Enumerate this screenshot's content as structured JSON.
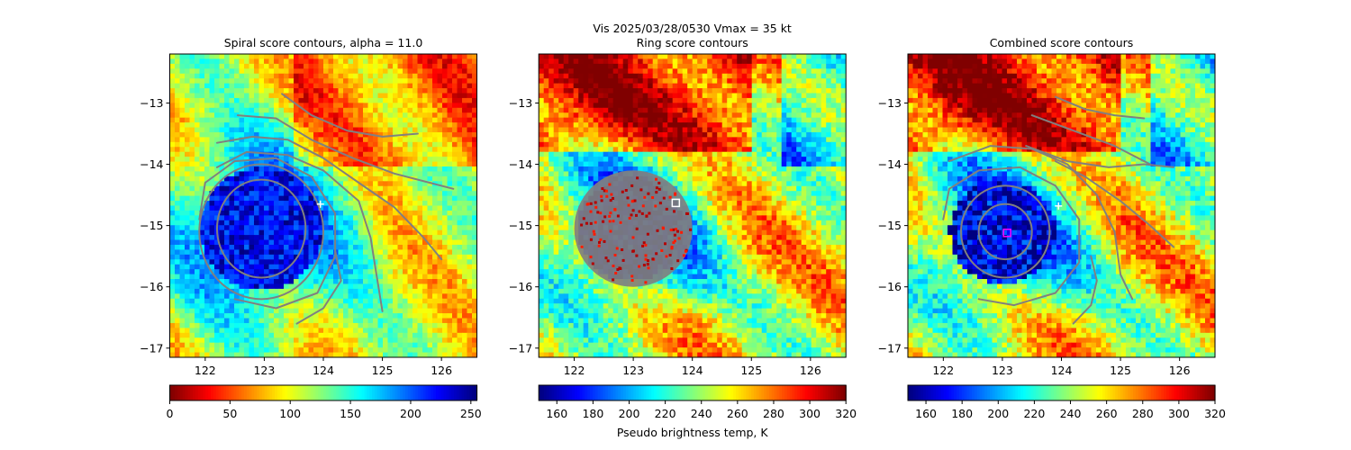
{
  "chart_data": {
    "suptitle": "Vis  2025/03/28/0530    Vmax = 35 kt",
    "xlim": [
      121.4,
      126.6
    ],
    "ylim": [
      -17.15,
      -12.2
    ],
    "xticks": [
      122,
      123,
      124,
      125,
      126
    ],
    "yticks": [
      -13,
      -14,
      -15,
      -16,
      -17
    ],
    "xtick_labels": [
      "122",
      "123",
      "124",
      "125",
      "126"
    ],
    "ytick_labels": [
      "−13",
      "−14",
      "−15",
      "−16",
      "−17"
    ],
    "colormap": "jet",
    "contour_color": "#808080",
    "panels": [
      {
        "type": "heatmap",
        "title": "Spiral score contours, alpha = 11.0",
        "field_range": [
          0,
          255
        ],
        "colorbar_ticks": [
          0,
          50,
          100,
          150,
          200,
          250
        ],
        "colorbar_tick_labels": [
          "0",
          "50",
          "100",
          "150",
          "200",
          "250"
        ],
        "colorbar_reversed": true,
        "colorbar_label": "",
        "core_center": [
          122.95,
          -15.05
        ],
        "marker": {
          "shape": "plus",
          "lon": 123.95,
          "lat": -14.65,
          "color": "#ffffff"
        },
        "contour_levels": [
          {
            "ellipse": {
              "lon": 122.95,
              "lat": -15.05,
              "rx": 0.75,
              "ry": 0.8
            }
          },
          {
            "ellipse": {
              "lon": 122.95,
              "lat": -15.1,
              "rx": 1.05,
              "ry": 1.1
            }
          },
          {
            "polyline": [
              [
                121.9,
                -14.9
              ],
              [
                122.0,
                -14.3
              ],
              [
                122.5,
                -13.95
              ],
              [
                123.2,
                -13.9
              ],
              [
                123.8,
                -14.2
              ],
              [
                124.2,
                -14.8
              ],
              [
                124.2,
                -15.5
              ],
              [
                123.9,
                -16.1
              ],
              [
                123.2,
                -16.35
              ],
              [
                122.5,
                -16.2
              ]
            ]
          },
          {
            "polyline": [
              [
                122.2,
                -14.05
              ],
              [
                122.7,
                -13.8
              ],
              [
                123.4,
                -13.85
              ],
              [
                124.0,
                -14.1
              ],
              [
                124.6,
                -14.6
              ],
              [
                124.8,
                -15.2
              ],
              [
                124.9,
                -15.8
              ],
              [
                125.0,
                -16.4
              ]
            ]
          },
          {
            "polyline": [
              [
                122.2,
                -13.65
              ],
              [
                122.8,
                -13.55
              ],
              [
                123.4,
                -13.6
              ],
              [
                124.0,
                -13.9
              ],
              [
                124.6,
                -14.3
              ],
              [
                125.2,
                -14.7
              ],
              [
                125.7,
                -15.2
              ],
              [
                126.0,
                -15.55
              ]
            ]
          },
          {
            "polyline": [
              [
                122.55,
                -13.2
              ],
              [
                123.2,
                -13.25
              ],
              [
                123.8,
                -13.6
              ],
              [
                124.5,
                -13.9
              ],
              [
                125.2,
                -14.15
              ],
              [
                125.8,
                -14.3
              ],
              [
                126.2,
                -14.4
              ]
            ]
          },
          {
            "polyline": [
              [
                123.3,
                -12.85
              ],
              [
                123.8,
                -13.2
              ],
              [
                124.4,
                -13.45
              ],
              [
                125.0,
                -13.55
              ],
              [
                125.6,
                -13.5
              ]
            ]
          },
          {
            "polyline": [
              [
                123.55,
                -16.6
              ],
              [
                124.0,
                -16.35
              ],
              [
                124.3,
                -15.9
              ],
              [
                124.2,
                -15.4
              ]
            ]
          }
        ]
      },
      {
        "type": "heatmap",
        "title": "Ring score contours",
        "field_range": [
          150,
          320
        ],
        "colorbar_ticks": [
          160,
          180,
          200,
          220,
          240,
          260,
          280,
          300,
          320
        ],
        "colorbar_tick_labels": [
          "160",
          "180",
          "200",
          "220",
          "240",
          "260",
          "280",
          "300",
          "320"
        ],
        "colorbar_reversed": false,
        "colorbar_label": "Pseudo brightness temp, K",
        "core_center": [
          122.95,
          -15.05
        ],
        "ring_fill": {
          "lon": 123.0,
          "lat": -15.05,
          "rx": 1.0,
          "ry": 0.95,
          "color": "#808080"
        },
        "marker": {
          "shape": "square",
          "lon": 123.72,
          "lat": -14.63,
          "color": "#ffffff"
        },
        "contour_levels": []
      },
      {
        "type": "heatmap",
        "title": "Combined score contours",
        "field_range": [
          150,
          320
        ],
        "colorbar_ticks": [
          160,
          180,
          200,
          220,
          240,
          260,
          280,
          300,
          320
        ],
        "colorbar_tick_labels": [
          "160",
          "180",
          "200",
          "220",
          "240",
          "260",
          "280",
          "300",
          "320"
        ],
        "colorbar_reversed": false,
        "colorbar_label": "",
        "core_center": [
          123.0,
          -15.1
        ],
        "marker": {
          "shape": "square",
          "lon": 123.08,
          "lat": -15.12,
          "color": "#ff00ff"
        },
        "marker2": {
          "shape": "plus",
          "lon": 123.95,
          "lat": -14.68,
          "color": "#ffffff"
        },
        "contour_levels": [
          {
            "ellipse": {
              "lon": 123.05,
              "lat": -15.1,
              "rx": 0.45,
              "ry": 0.45
            }
          },
          {
            "ellipse": {
              "lon": 123.05,
              "lat": -15.1,
              "rx": 0.75,
              "ry": 0.75
            }
          },
          {
            "polyline": [
              [
                122.0,
                -14.9
              ],
              [
                122.1,
                -14.4
              ],
              [
                122.6,
                -14.1
              ],
              [
                123.3,
                -14.05
              ],
              [
                123.9,
                -14.35
              ],
              [
                124.3,
                -14.9
              ],
              [
                124.3,
                -15.6
              ],
              [
                123.9,
                -16.1
              ],
              [
                123.2,
                -16.3
              ],
              [
                122.6,
                -16.2
              ]
            ]
          },
          {
            "polyline": [
              [
                122.1,
                -13.95
              ],
              [
                122.8,
                -13.7
              ],
              [
                123.5,
                -13.75
              ],
              [
                124.1,
                -14.0
              ],
              [
                124.6,
                -14.5
              ],
              [
                124.9,
                -15.1
              ],
              [
                125.0,
                -15.8
              ],
              [
                125.2,
                -16.2
              ]
            ]
          },
          {
            "polyline": [
              [
                124.2,
                -16.6
              ],
              [
                124.5,
                -16.3
              ],
              [
                124.6,
                -15.9
              ],
              [
                124.5,
                -15.5
              ]
            ]
          },
          {
            "polyline": [
              [
                123.9,
                -12.9
              ],
              [
                124.4,
                -13.1
              ],
              [
                124.9,
                -13.2
              ],
              [
                125.4,
                -13.25
              ]
            ]
          },
          {
            "polyline": [
              [
                123.5,
                -13.2
              ],
              [
                124.2,
                -13.45
              ],
              [
                124.9,
                -13.7
              ],
              [
                125.5,
                -14.0
              ]
            ]
          },
          {
            "polyline": [
              [
                123.4,
                -13.7
              ],
              [
                124.1,
                -13.95
              ],
              [
                124.8,
                -14.05
              ],
              [
                125.4,
                -14.0
              ],
              [
                125.9,
                -14.05
              ]
            ]
          },
          {
            "polyline": [
              [
                123.9,
                -13.95
              ],
              [
                124.4,
                -14.2
              ],
              [
                125.0,
                -14.6
              ],
              [
                125.5,
                -15.0
              ],
              [
                125.9,
                -15.35
              ]
            ]
          }
        ]
      }
    ]
  }
}
